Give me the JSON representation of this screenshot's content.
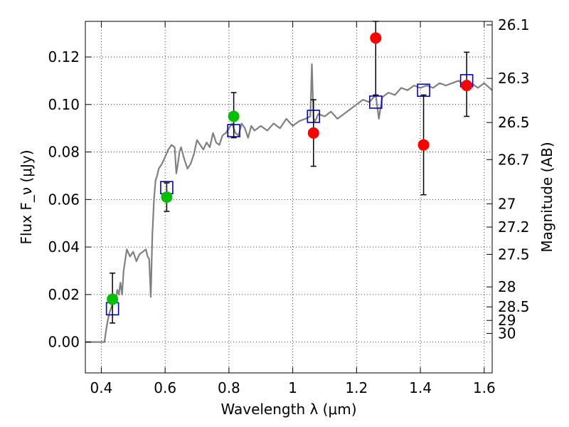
{
  "chart_data": {
    "type": "scatter",
    "xlabel": "Wavelength λ (μm)",
    "ylabel": "Flux F_ν (μJy)",
    "ylabel_right": "Magnitude (AB)",
    "xlim": [
      0.35,
      1.625
    ],
    "ylim": [
      -0.013,
      0.135
    ],
    "grid": true,
    "x_ticks": [
      0.4,
      0.6,
      0.8,
      1.0,
      1.2,
      1.4,
      1.6
    ],
    "x_tick_labels": [
      "0.4",
      "0.6",
      "0.8",
      "1",
      "1.2",
      "1.4",
      "1.6"
    ],
    "y_ticks": [
      0.0,
      0.02,
      0.04,
      0.06,
      0.08,
      0.1,
      0.12
    ],
    "y_tick_labels": [
      "0.00",
      "0.02",
      "0.04",
      "0.06",
      "0.08",
      "0.10",
      "0.12"
    ],
    "right_ticks": [
      {
        "label": "26.1",
        "flux": 0.1335
      },
      {
        "label": "26.3",
        "flux": 0.111
      },
      {
        "label": "26.5",
        "flux": 0.0924
      },
      {
        "label": "26.7",
        "flux": 0.0768
      },
      {
        "label": "27",
        "flux": 0.0582
      },
      {
        "label": "27.2",
        "flux": 0.0484
      },
      {
        "label": "27.5",
        "flux": 0.0369
      },
      {
        "label": "28",
        "flux": 0.0232
      },
      {
        "label": "28.5",
        "flux": 0.0148
      },
      {
        "label": "29",
        "flux": 0.0091
      },
      {
        "label": "30",
        "flux": 0.0036
      }
    ],
    "series": [
      {
        "name": "",
        "kind": "line",
        "color": "#808080",
        "x": [
          0.35,
          0.37,
          0.39,
          0.41,
          0.415,
          0.42,
          0.425,
          0.43,
          0.435,
          0.44,
          0.445,
          0.45,
          0.455,
          0.46,
          0.465,
          0.47,
          0.48,
          0.49,
          0.5,
          0.51,
          0.52,
          0.53,
          0.54,
          0.545,
          0.55,
          0.555,
          0.56,
          0.565,
          0.57,
          0.575,
          0.58,
          0.59,
          0.6,
          0.61,
          0.62,
          0.63,
          0.635,
          0.64,
          0.645,
          0.65,
          0.66,
          0.67,
          0.68,
          0.69,
          0.7,
          0.71,
          0.72,
          0.73,
          0.74,
          0.75,
          0.76,
          0.77,
          0.78,
          0.79,
          0.8,
          0.81,
          0.82,
          0.83,
          0.84,
          0.85,
          0.86,
          0.87,
          0.88,
          0.89,
          0.9,
          0.92,
          0.94,
          0.96,
          0.98,
          1.0,
          1.02,
          1.04,
          1.055,
          1.06,
          1.065,
          1.07,
          1.08,
          1.1,
          1.12,
          1.14,
          1.16,
          1.18,
          1.2,
          1.22,
          1.24,
          1.26,
          1.27,
          1.28,
          1.3,
          1.32,
          1.34,
          1.36,
          1.38,
          1.4,
          1.42,
          1.44,
          1.46,
          1.48,
          1.5,
          1.52,
          1.54,
          1.56,
          1.58,
          1.6,
          1.625
        ],
        "y": [
          0.0,
          0.0,
          0.0,
          0.0,
          0.005,
          0.009,
          0.012,
          0.014,
          0.016,
          0.018,
          0.017,
          0.022,
          0.02,
          0.025,
          0.02,
          0.03,
          0.039,
          0.036,
          0.038,
          0.034,
          0.037,
          0.038,
          0.039,
          0.036,
          0.035,
          0.019,
          0.045,
          0.06,
          0.068,
          0.07,
          0.073,
          0.075,
          0.078,
          0.081,
          0.083,
          0.082,
          0.071,
          0.075,
          0.08,
          0.082,
          0.077,
          0.073,
          0.075,
          0.079,
          0.085,
          0.083,
          0.081,
          0.084,
          0.082,
          0.088,
          0.084,
          0.083,
          0.087,
          0.088,
          0.09,
          0.092,
          0.088,
          0.087,
          0.092,
          0.09,
          0.086,
          0.091,
          0.089,
          0.09,
          0.091,
          0.089,
          0.092,
          0.09,
          0.094,
          0.091,
          0.093,
          0.094,
          0.095,
          0.117,
          0.094,
          0.093,
          0.096,
          0.095,
          0.097,
          0.094,
          0.096,
          0.098,
          0.1,
          0.102,
          0.101,
          0.104,
          0.094,
          0.103,
          0.105,
          0.104,
          0.107,
          0.106,
          0.108,
          0.107,
          0.108,
          0.107,
          0.109,
          0.108,
          0.109,
          0.11,
          0.108,
          0.109,
          0.107,
          0.109,
          0.106
        ]
      },
      {
        "name": "",
        "kind": "squares",
        "color": "#0000cc",
        "x": [
          0.435,
          0.605,
          0.815,
          1.065,
          1.26,
          1.41,
          1.545
        ],
        "y": [
          0.014,
          0.065,
          0.089,
          0.095,
          0.101,
          0.106,
          0.11
        ]
      },
      {
        "name": "",
        "kind": "errorbar-points",
        "color": "#00c000",
        "x": [
          0.435,
          0.605,
          0.815
        ],
        "y": [
          0.018,
          0.061,
          0.095
        ],
        "yerr_low": [
          0.008,
          0.055,
          0.086
        ],
        "yerr_high": [
          0.029,
          0.067,
          0.105
        ]
      },
      {
        "name": "",
        "kind": "errorbar-points",
        "color": "#ff0000",
        "x": [
          1.065,
          1.26,
          1.41,
          1.545
        ],
        "y": [
          0.088,
          0.128,
          0.083,
          0.108
        ],
        "yerr_low": [
          0.074,
          0.104,
          0.062,
          0.095
        ],
        "yerr_high": [
          0.102,
          0.135,
          0.104,
          0.122
        ]
      }
    ]
  }
}
